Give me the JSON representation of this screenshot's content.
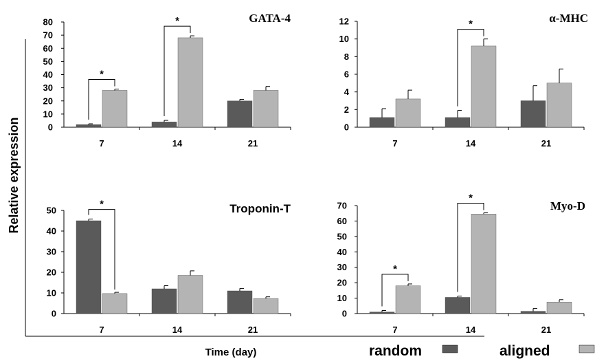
{
  "ylabel": "Relative expression",
  "xlabel": "Time (day)",
  "legend": {
    "random": "random",
    "aligned": "aligned"
  },
  "colors": {
    "random": "#5a5a5a",
    "aligned": "#b4b4b4"
  },
  "significance_marker": "*",
  "chart_data": [
    {
      "type": "bar",
      "title": "GATA-4",
      "categories": [
        "7",
        "14",
        "21"
      ],
      "ylim": [
        0,
        80
      ],
      "yticks": [
        "0",
        "10",
        "20",
        "30",
        "40",
        "50",
        "60",
        "70",
        "80"
      ],
      "series": [
        {
          "name": "random",
          "values": [
            2,
            4,
            20
          ],
          "errors": [
            0.6,
            1.2,
            1.2
          ]
        },
        {
          "name": "aligned",
          "values": [
            28,
            68,
            28
          ],
          "errors": [
            1,
            1.5,
            3
          ]
        }
      ],
      "significant": [
        0,
        1
      ]
    },
    {
      "type": "bar",
      "title": "α-MHC",
      "categories": [
        "7",
        "14",
        "21"
      ],
      "ylim": [
        0,
        12
      ],
      "yticks": [
        "0",
        "2",
        "4",
        "6",
        "8",
        "10",
        "12"
      ],
      "series": [
        {
          "name": "random",
          "values": [
            1.1,
            1.1,
            3
          ],
          "errors": [
            1,
            0.8,
            1.7
          ]
        },
        {
          "name": "aligned",
          "values": [
            3.2,
            9.2,
            5
          ],
          "errors": [
            1,
            0.8,
            1.6
          ]
        }
      ],
      "significant": [
        1
      ]
    },
    {
      "type": "bar",
      "title": "Troponin-T",
      "categories": [
        "7",
        "14",
        "21"
      ],
      "ylim": [
        0,
        50
      ],
      "yticks": [
        "0",
        "10",
        "20",
        "30",
        "40",
        "50"
      ],
      "series": [
        {
          "name": "random",
          "values": [
            45,
            12,
            11
          ],
          "errors": [
            0.8,
            1.5,
            1.2
          ]
        },
        {
          "name": "aligned",
          "values": [
            9.7,
            18.5,
            7.3
          ],
          "errors": [
            0.6,
            2.2,
            0.8
          ]
        }
      ],
      "significant": [
        0
      ]
    },
    {
      "type": "bar",
      "title": "Myo-D",
      "categories": [
        "7",
        "14",
        "21"
      ],
      "ylim": [
        0,
        70
      ],
      "yticks": [
        "0",
        "10",
        "20",
        "30",
        "40",
        "50",
        "60",
        "70"
      ],
      "series": [
        {
          "name": "random",
          "values": [
            1,
            10.5,
            1.5
          ],
          "errors": [
            1,
            0.8,
            1.8
          ]
        },
        {
          "name": "aligned",
          "values": [
            18,
            64.5,
            7.5
          ],
          "errors": [
            1.2,
            0.8,
            1.5
          ]
        }
      ],
      "significant": [
        0,
        1
      ]
    }
  ]
}
